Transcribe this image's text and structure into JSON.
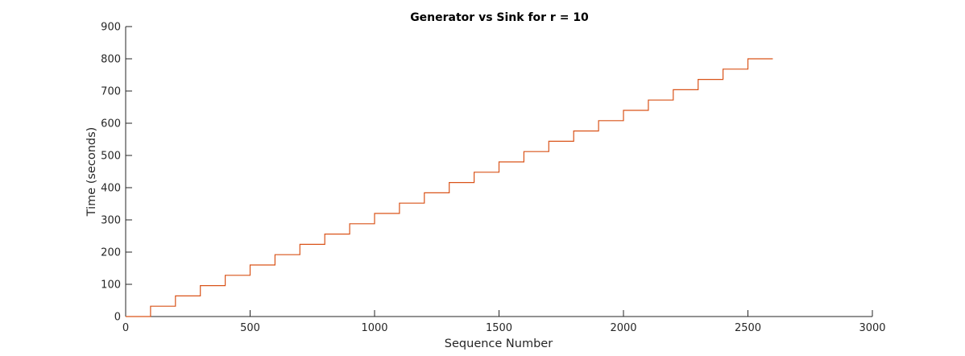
{
  "chart_data": {
    "type": "line",
    "title": "Generator vs Sink for r = 10",
    "xlabel": "Sequence Number",
    "ylabel": "Time (seconds)",
    "xlim": [
      0,
      3000
    ],
    "ylim": [
      0,
      900
    ],
    "xticks": [
      0,
      500,
      1000,
      1500,
      2000,
      2500,
      3000
    ],
    "yticks": [
      0,
      100,
      200,
      300,
      400,
      500,
      600,
      700,
      800,
      900
    ],
    "grid": false,
    "legend": "none",
    "line_color": "#D95319",
    "axis_color": "#262626",
    "series": [
      {
        "step": "post",
        "x": [
          0,
          100,
          200,
          300,
          400,
          500,
          600,
          700,
          800,
          900,
          1000,
          1100,
          1200,
          1300,
          1400,
          1500,
          1600,
          1700,
          1800,
          1900,
          2000,
          2100,
          2200,
          2300,
          2400,
          2500,
          2600
        ],
        "y": [
          0,
          32,
          64,
          96,
          128,
          160,
          192,
          224,
          256,
          288,
          320,
          352,
          384,
          416,
          448,
          480,
          512,
          544,
          576,
          608,
          640,
          672,
          704,
          736,
          768,
          800,
          800
        ]
      }
    ]
  }
}
